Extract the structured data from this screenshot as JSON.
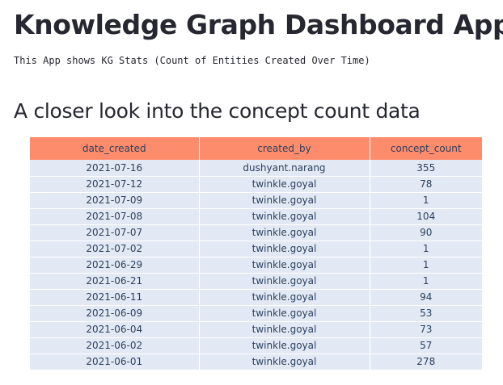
{
  "header": {
    "title": "Knowledge Graph Dashboard App",
    "subtitle": "This App shows KG Stats (Count of Entities Created Over Time)"
  },
  "section": {
    "heading": "A closer look into the concept count data"
  },
  "table": {
    "header_color": "#fd8c6c",
    "cell_color": "#e3e9f4",
    "columns": [
      "date_created",
      "created_by",
      "concept_count"
    ],
    "rows": [
      [
        "2021-07-16",
        "dushyant.narang",
        "355"
      ],
      [
        "2021-07-12",
        "twinkle.goyal",
        "78"
      ],
      [
        "2021-07-09",
        "twinkle.goyal",
        "1"
      ],
      [
        "2021-07-08",
        "twinkle.goyal",
        "104"
      ],
      [
        "2021-07-07",
        "twinkle.goyal",
        "90"
      ],
      [
        "2021-07-02",
        "twinkle.goyal",
        "1"
      ],
      [
        "2021-06-29",
        "twinkle.goyal",
        "1"
      ],
      [
        "2021-06-21",
        "twinkle.goyal",
        "1"
      ],
      [
        "2021-06-11",
        "twinkle.goyal",
        "94"
      ],
      [
        "2021-06-09",
        "twinkle.goyal",
        "53"
      ],
      [
        "2021-06-04",
        "twinkle.goyal",
        "73"
      ],
      [
        "2021-06-02",
        "twinkle.goyal",
        "57"
      ],
      [
        "2021-06-01",
        "twinkle.goyal",
        "278"
      ]
    ]
  }
}
